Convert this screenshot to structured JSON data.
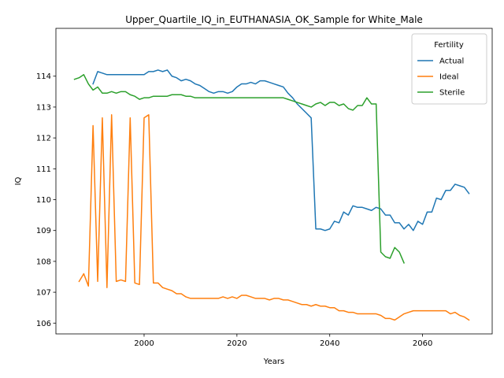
{
  "chart_data": {
    "type": "line",
    "title": "Upper_Quartile_IQ_in_EUTHANASIA_OK_Sample for White_Male",
    "xlabel": "Years",
    "ylabel": "IQ",
    "xlim": [
      1981,
      2075
    ],
    "ylim": [
      105.65,
      115.55
    ],
    "xticks": [
      2000,
      2020,
      2040,
      2060
    ],
    "yticks": [
      106,
      107,
      108,
      109,
      110,
      111,
      112,
      113,
      114
    ],
    "grid": false,
    "legend": {
      "title": "Fertility",
      "location": "top-right"
    },
    "series": [
      {
        "name": "Actual",
        "color": "#1f77b4",
        "x": [
          1989,
          1990,
          1991,
          1992,
          1993,
          1994,
          1995,
          1996,
          1997,
          1998,
          1999,
          2000,
          2001,
          2002,
          2003,
          2004,
          2005,
          2006,
          2007,
          2008,
          2009,
          2010,
          2011,
          2012,
          2013,
          2014,
          2015,
          2016,
          2017,
          2018,
          2019,
          2020,
          2021,
          2022,
          2023,
          2024,
          2025,
          2026,
          2027,
          2028,
          2029,
          2030,
          2031,
          2032,
          2033,
          2034,
          2035,
          2036,
          2037,
          2038,
          2039,
          2040,
          2041,
          2042,
          2043,
          2044,
          2045,
          2046,
          2047,
          2048,
          2049,
          2050,
          2051,
          2052,
          2053,
          2054,
          2055,
          2056,
          2057,
          2058,
          2059,
          2060,
          2061,
          2062,
          2063,
          2064,
          2065,
          2066,
          2067,
          2068,
          2069,
          2070
        ],
        "values": [
          113.75,
          114.15,
          114.1,
          114.05,
          114.05,
          114.05,
          114.05,
          114.05,
          114.05,
          114.05,
          114.05,
          114.05,
          114.15,
          114.15,
          114.2,
          114.15,
          114.2,
          114.0,
          113.95,
          113.85,
          113.9,
          113.85,
          113.75,
          113.7,
          113.6,
          113.5,
          113.45,
          113.5,
          113.5,
          113.45,
          113.5,
          113.65,
          113.75,
          113.75,
          113.8,
          113.75,
          113.85,
          113.85,
          113.8,
          113.75,
          113.7,
          113.65,
          113.45,
          113.3,
          113.1,
          112.95,
          112.8,
          112.65,
          109.05,
          109.05,
          109.0,
          109.05,
          109.3,
          109.25,
          109.6,
          109.5,
          109.8,
          109.75,
          109.75,
          109.7,
          109.65,
          109.75,
          109.7,
          109.5,
          109.5,
          109.25,
          109.25,
          109.05,
          109.2,
          109.0,
          109.3,
          109.2,
          109.6,
          109.6,
          110.05,
          110.0,
          110.3,
          110.3,
          110.5,
          110.45,
          110.4,
          110.2
        ]
      },
      {
        "name": "Ideal",
        "color": "#ff7f0e",
        "x": [
          1986,
          1987,
          1988,
          1989,
          1990,
          1991,
          1992,
          1993,
          1994,
          1995,
          1996,
          1997,
          1998,
          1999,
          2000,
          2001,
          2002,
          2003,
          2004,
          2005,
          2006,
          2007,
          2008,
          2009,
          2010,
          2011,
          2012,
          2013,
          2014,
          2015,
          2016,
          2017,
          2018,
          2019,
          2020,
          2021,
          2022,
          2023,
          2024,
          2025,
          2026,
          2027,
          2028,
          2029,
          2030,
          2031,
          2032,
          2033,
          2034,
          2035,
          2036,
          2037,
          2038,
          2039,
          2040,
          2041,
          2042,
          2043,
          2044,
          2045,
          2046,
          2047,
          2048,
          2049,
          2050,
          2051,
          2052,
          2053,
          2054,
          2055,
          2056,
          2057,
          2058,
          2059,
          2060,
          2061,
          2062,
          2063,
          2064,
          2065,
          2066,
          2067,
          2068,
          2069,
          2070
        ],
        "values": [
          107.35,
          107.6,
          107.2,
          112.4,
          107.35,
          112.65,
          107.15,
          112.75,
          107.35,
          107.4,
          107.35,
          112.65,
          107.3,
          107.25,
          112.65,
          112.75,
          107.3,
          107.3,
          107.15,
          107.1,
          107.05,
          106.95,
          106.95,
          106.85,
          106.8,
          106.8,
          106.8,
          106.8,
          106.8,
          106.8,
          106.8,
          106.85,
          106.8,
          106.85,
          106.8,
          106.9,
          106.9,
          106.85,
          106.8,
          106.8,
          106.8,
          106.75,
          106.8,
          106.8,
          106.75,
          106.75,
          106.7,
          106.65,
          106.6,
          106.6,
          106.55,
          106.6,
          106.55,
          106.55,
          106.5,
          106.5,
          106.4,
          106.4,
          106.35,
          106.35,
          106.3,
          106.3,
          106.3,
          106.3,
          106.3,
          106.25,
          106.15,
          106.15,
          106.1,
          106.2,
          106.3,
          106.35,
          106.4,
          106.4,
          106.4,
          106.4,
          106.4,
          106.4,
          106.4,
          106.4,
          106.3,
          106.35,
          106.25,
          106.2,
          106.1
        ]
      },
      {
        "name": "Sterile",
        "color": "#2ca02c",
        "x": [
          1985,
          1986,
          1987,
          1988,
          1989,
          1990,
          1991,
          1992,
          1993,
          1994,
          1995,
          1996,
          1997,
          1998,
          1999,
          2000,
          2001,
          2002,
          2003,
          2004,
          2005,
          2006,
          2007,
          2008,
          2009,
          2010,
          2011,
          2012,
          2013,
          2014,
          2015,
          2016,
          2017,
          2018,
          2019,
          2020,
          2021,
          2022,
          2023,
          2024,
          2025,
          2026,
          2027,
          2028,
          2029,
          2030,
          2031,
          2032,
          2033,
          2034,
          2035,
          2036,
          2037,
          2038,
          2039,
          2040,
          2041,
          2042,
          2043,
          2044,
          2045,
          2046,
          2047,
          2048,
          2049,
          2050,
          2051,
          2052,
          2053,
          2054,
          2055,
          2056
        ],
        "values": [
          113.9,
          113.95,
          114.05,
          113.75,
          113.55,
          113.65,
          113.45,
          113.45,
          113.5,
          113.45,
          113.5,
          113.5,
          113.4,
          113.35,
          113.25,
          113.3,
          113.3,
          113.35,
          113.35,
          113.35,
          113.35,
          113.4,
          113.4,
          113.4,
          113.35,
          113.35,
          113.3,
          113.3,
          113.3,
          113.3,
          113.3,
          113.3,
          113.3,
          113.3,
          113.3,
          113.3,
          113.3,
          113.3,
          113.3,
          113.3,
          113.3,
          113.3,
          113.3,
          113.3,
          113.3,
          113.3,
          113.25,
          113.2,
          113.15,
          113.1,
          113.05,
          113.0,
          113.1,
          113.15,
          113.05,
          113.15,
          113.15,
          113.05,
          113.1,
          112.95,
          112.9,
          113.05,
          113.05,
          113.3,
          113.1,
          113.1,
          108.3,
          108.15,
          108.1,
          108.45,
          108.3,
          107.95
        ]
      }
    ]
  }
}
